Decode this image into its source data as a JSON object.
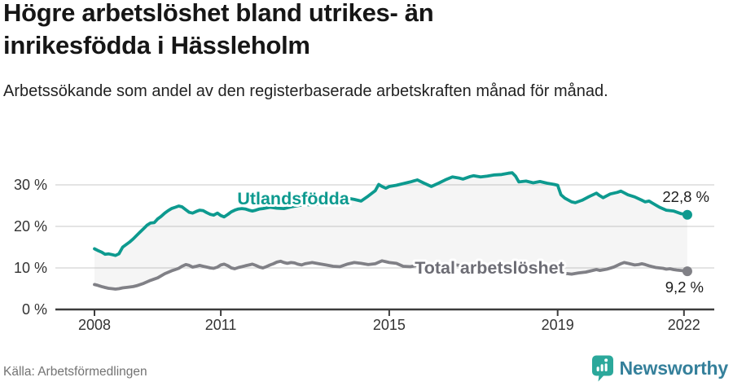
{
  "header": {
    "title_line1": "Högre arbetslöshet bland utrikes- än",
    "title_line2": "inrikesfödda i Hässleholm",
    "subtitle": "Arbetssökande som andel av den registerbaserade arbetskraften månad för månad."
  },
  "footer": {
    "source": "Källa: Arbetsförmedlingen",
    "brand": "Newsworthy",
    "brand_color": "#35809b",
    "badge_color": "#2ba89b"
  },
  "chart_data": {
    "type": "line",
    "unit": "%",
    "title": "Högre arbetslöshet bland utrikes- än inrikesfödda i Hässleholm",
    "subtitle": "Arbetssökande som andel av den registerbaserade arbetskraften månad för månad.",
    "xlim": [
      2007.8,
      2022.6
    ],
    "ylim": [
      0,
      34
    ],
    "yticks": [
      0,
      10,
      20,
      30
    ],
    "ytick_labels": [
      "0 %",
      "10 %",
      "20 %",
      "30 %"
    ],
    "xticks": [
      2008,
      2011,
      2015,
      2019,
      2022
    ],
    "xtick_labels": [
      "2008",
      "2011",
      "2015",
      "2019",
      "2022"
    ],
    "grid_on": true,
    "grid_color": "#dcdcdc",
    "axis_color": "#3c3c3c",
    "tick_label_color": "#333333",
    "value_label_color": "#1d1d1d",
    "band_fill": "rgba(125,125,125,0.075)",
    "legend_position": "inline-labels",
    "series": [
      {
        "name": "Utlandsfödda",
        "color": "#0d9a8f",
        "label_color": "#0d9a8f",
        "end_value": 22.8,
        "end_label": "22,8 %",
        "points": [
          [
            2008.0,
            14.6
          ],
          [
            2008.08,
            14.2
          ],
          [
            2008.17,
            13.8
          ],
          [
            2008.25,
            13.3
          ],
          [
            2008.33,
            13.4
          ],
          [
            2008.42,
            13.2
          ],
          [
            2008.5,
            13.0
          ],
          [
            2008.58,
            13.4
          ],
          [
            2008.67,
            15.0
          ],
          [
            2008.75,
            15.6
          ],
          [
            2008.83,
            16.2
          ],
          [
            2008.92,
            17.0
          ],
          [
            2009.0,
            17.8
          ],
          [
            2009.08,
            18.6
          ],
          [
            2009.17,
            19.5
          ],
          [
            2009.25,
            20.3
          ],
          [
            2009.33,
            20.8
          ],
          [
            2009.42,
            20.9
          ],
          [
            2009.5,
            21.8
          ],
          [
            2009.58,
            22.4
          ],
          [
            2009.67,
            23.2
          ],
          [
            2009.75,
            23.8
          ],
          [
            2009.83,
            24.3
          ],
          [
            2009.92,
            24.6
          ],
          [
            2010.0,
            24.9
          ],
          [
            2010.08,
            24.7
          ],
          [
            2010.17,
            24.0
          ],
          [
            2010.25,
            23.4
          ],
          [
            2010.33,
            23.2
          ],
          [
            2010.42,
            23.6
          ],
          [
            2010.5,
            23.9
          ],
          [
            2010.58,
            23.8
          ],
          [
            2010.67,
            23.3
          ],
          [
            2010.75,
            22.9
          ],
          [
            2010.83,
            22.7
          ],
          [
            2010.92,
            23.2
          ],
          [
            2011.0,
            22.6
          ],
          [
            2011.08,
            22.3
          ],
          [
            2011.17,
            22.9
          ],
          [
            2011.25,
            23.5
          ],
          [
            2011.33,
            23.9
          ],
          [
            2011.42,
            24.2
          ],
          [
            2011.5,
            24.3
          ],
          [
            2011.58,
            24.2
          ],
          [
            2011.67,
            23.9
          ],
          [
            2011.75,
            23.7
          ],
          [
            2011.83,
            23.9
          ],
          [
            2011.92,
            24.2
          ],
          [
            2012.0,
            24.3
          ],
          [
            2012.17,
            24.6
          ],
          [
            2012.33,
            24.4
          ],
          [
            2012.5,
            24.3
          ],
          [
            2012.67,
            24.7
          ],
          [
            2012.83,
            25.0
          ],
          [
            2013.0,
            25.3
          ],
          [
            2013.17,
            25.1
          ],
          [
            2013.33,
            25.5
          ],
          [
            2013.5,
            25.3
          ],
          [
            2013.67,
            25.8
          ],
          [
            2013.83,
            26.2
          ],
          [
            2014.0,
            26.8
          ],
          [
            2014.17,
            26.5
          ],
          [
            2014.33,
            26.1
          ],
          [
            2014.5,
            27.3
          ],
          [
            2014.67,
            28.6
          ],
          [
            2014.75,
            30.1
          ],
          [
            2014.83,
            29.6
          ],
          [
            2014.92,
            29.2
          ],
          [
            2015.0,
            29.6
          ],
          [
            2015.17,
            29.9
          ],
          [
            2015.33,
            30.3
          ],
          [
            2015.5,
            30.7
          ],
          [
            2015.67,
            31.2
          ],
          [
            2015.83,
            30.4
          ],
          [
            2016.0,
            29.6
          ],
          [
            2016.17,
            30.4
          ],
          [
            2016.33,
            31.2
          ],
          [
            2016.5,
            31.9
          ],
          [
            2016.67,
            31.6
          ],
          [
            2016.75,
            31.4
          ],
          [
            2016.92,
            32.0
          ],
          [
            2017.0,
            32.2
          ],
          [
            2017.17,
            31.9
          ],
          [
            2017.33,
            32.1
          ],
          [
            2017.5,
            32.4
          ],
          [
            2017.67,
            32.5
          ],
          [
            2017.83,
            32.8
          ],
          [
            2017.92,
            32.9
          ],
          [
            2018.0,
            32.1
          ],
          [
            2018.08,
            30.7
          ],
          [
            2018.25,
            30.9
          ],
          [
            2018.42,
            30.5
          ],
          [
            2018.58,
            30.8
          ],
          [
            2018.75,
            30.4
          ],
          [
            2018.92,
            30.1
          ],
          [
            2019.0,
            29.9
          ],
          [
            2019.08,
            27.6
          ],
          [
            2019.17,
            26.8
          ],
          [
            2019.33,
            25.9
          ],
          [
            2019.42,
            25.7
          ],
          [
            2019.58,
            26.3
          ],
          [
            2019.75,
            27.2
          ],
          [
            2019.92,
            28.0
          ],
          [
            2020.0,
            27.4
          ],
          [
            2020.08,
            26.9
          ],
          [
            2020.25,
            27.8
          ],
          [
            2020.42,
            28.2
          ],
          [
            2020.5,
            28.5
          ],
          [
            2020.67,
            27.6
          ],
          [
            2020.83,
            27.1
          ],
          [
            2021.0,
            26.3
          ],
          [
            2021.08,
            25.9
          ],
          [
            2021.17,
            26.1
          ],
          [
            2021.25,
            25.6
          ],
          [
            2021.42,
            24.6
          ],
          [
            2021.58,
            23.9
          ],
          [
            2021.75,
            23.7
          ],
          [
            2021.92,
            23.1
          ],
          [
            2022.08,
            22.8
          ]
        ]
      },
      {
        "name": "Total arbetslöshet",
        "color": "#808086",
        "label_color": "#6d6d75",
        "end_value": 9.2,
        "end_label": "9,2 %",
        "points": [
          [
            2008.0,
            6.0
          ],
          [
            2008.08,
            5.8
          ],
          [
            2008.17,
            5.5
          ],
          [
            2008.25,
            5.3
          ],
          [
            2008.33,
            5.1
          ],
          [
            2008.42,
            5.0
          ],
          [
            2008.5,
            4.9
          ],
          [
            2008.58,
            5.0
          ],
          [
            2008.67,
            5.2
          ],
          [
            2008.75,
            5.3
          ],
          [
            2008.83,
            5.4
          ],
          [
            2008.92,
            5.5
          ],
          [
            2009.0,
            5.7
          ],
          [
            2009.17,
            6.3
          ],
          [
            2009.33,
            7.0
          ],
          [
            2009.5,
            7.6
          ],
          [
            2009.67,
            8.6
          ],
          [
            2009.83,
            9.3
          ],
          [
            2009.92,
            9.6
          ],
          [
            2010.0,
            9.9
          ],
          [
            2010.08,
            10.4
          ],
          [
            2010.17,
            10.8
          ],
          [
            2010.25,
            10.6
          ],
          [
            2010.33,
            10.2
          ],
          [
            2010.42,
            10.4
          ],
          [
            2010.5,
            10.6
          ],
          [
            2010.58,
            10.4
          ],
          [
            2010.67,
            10.2
          ],
          [
            2010.75,
            10.0
          ],
          [
            2010.83,
            9.9
          ],
          [
            2010.92,
            10.2
          ],
          [
            2011.0,
            10.7
          ],
          [
            2011.08,
            10.9
          ],
          [
            2011.17,
            10.5
          ],
          [
            2011.25,
            10.0
          ],
          [
            2011.33,
            9.8
          ],
          [
            2011.42,
            10.1
          ],
          [
            2011.5,
            10.3
          ],
          [
            2011.58,
            10.5
          ],
          [
            2011.67,
            10.7
          ],
          [
            2011.75,
            10.9
          ],
          [
            2011.83,
            10.6
          ],
          [
            2011.92,
            10.2
          ],
          [
            2012.0,
            10.0
          ],
          [
            2012.08,
            10.3
          ],
          [
            2012.17,
            10.7
          ],
          [
            2012.25,
            11.0
          ],
          [
            2012.33,
            11.4
          ],
          [
            2012.42,
            11.6
          ],
          [
            2012.5,
            11.3
          ],
          [
            2012.58,
            11.1
          ],
          [
            2012.67,
            11.3
          ],
          [
            2012.75,
            11.2
          ],
          [
            2012.83,
            10.9
          ],
          [
            2012.92,
            10.7
          ],
          [
            2013.0,
            11.0
          ],
          [
            2013.17,
            11.3
          ],
          [
            2013.33,
            11.0
          ],
          [
            2013.5,
            10.7
          ],
          [
            2013.67,
            10.4
          ],
          [
            2013.83,
            10.3
          ],
          [
            2014.0,
            10.9
          ],
          [
            2014.17,
            11.3
          ],
          [
            2014.33,
            11.1
          ],
          [
            2014.5,
            10.8
          ],
          [
            2014.67,
            11.0
          ],
          [
            2014.83,
            11.7
          ],
          [
            2014.92,
            11.5
          ],
          [
            2015.0,
            11.3
          ],
          [
            2015.17,
            11.1
          ],
          [
            2015.33,
            10.4
          ],
          [
            2015.5,
            10.3
          ],
          [
            2015.67,
            10.6
          ],
          [
            2015.83,
            10.8
          ],
          [
            2016.0,
            10.5
          ],
          [
            2016.17,
            10.7
          ],
          [
            2016.33,
            10.9
          ],
          [
            2016.5,
            10.8
          ],
          [
            2016.67,
            10.6
          ],
          [
            2016.83,
            10.7
          ],
          [
            2017.0,
            10.8
          ],
          [
            2017.17,
            10.6
          ],
          [
            2017.33,
            10.5
          ],
          [
            2017.5,
            10.4
          ],
          [
            2017.67,
            10.5
          ],
          [
            2017.83,
            10.6
          ],
          [
            2018.0,
            10.3
          ],
          [
            2018.17,
            10.0
          ],
          [
            2018.33,
            9.8
          ],
          [
            2018.5,
            9.6
          ],
          [
            2018.67,
            9.5
          ],
          [
            2018.83,
            9.3
          ],
          [
            2019.0,
            9.0
          ],
          [
            2019.17,
            8.7
          ],
          [
            2019.33,
            8.5
          ],
          [
            2019.5,
            8.8
          ],
          [
            2019.67,
            9.0
          ],
          [
            2019.83,
            9.4
          ],
          [
            2019.92,
            9.6
          ],
          [
            2020.0,
            9.4
          ],
          [
            2020.17,
            9.7
          ],
          [
            2020.33,
            10.2
          ],
          [
            2020.42,
            10.6
          ],
          [
            2020.5,
            11.0
          ],
          [
            2020.58,
            11.3
          ],
          [
            2020.67,
            11.1
          ],
          [
            2020.75,
            10.9
          ],
          [
            2020.83,
            10.7
          ],
          [
            2020.92,
            10.8
          ],
          [
            2021.0,
            11.0
          ],
          [
            2021.08,
            10.8
          ],
          [
            2021.17,
            10.5
          ],
          [
            2021.25,
            10.3
          ],
          [
            2021.33,
            10.1
          ],
          [
            2021.5,
            9.9
          ],
          [
            2021.58,
            9.7
          ],
          [
            2021.67,
            9.8
          ],
          [
            2021.75,
            9.6
          ],
          [
            2021.83,
            9.5
          ],
          [
            2021.92,
            9.4
          ],
          [
            2022.08,
            9.2
          ]
        ]
      }
    ]
  }
}
